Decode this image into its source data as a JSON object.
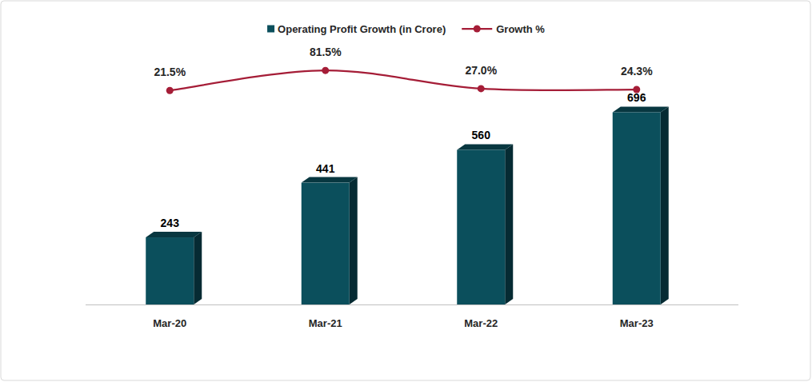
{
  "chart_data": {
    "type": "bar",
    "categories": [
      "Mar-20",
      "Mar-21",
      "Mar-22",
      "Mar-23"
    ],
    "series": [
      {
        "name": "Operating Profit Growth (in Crore)",
        "type": "bar",
        "color": "#0b4f5c",
        "values": [
          243,
          441,
          560,
          696
        ]
      },
      {
        "name": "Growth %",
        "type": "line",
        "axis": "y2",
        "color": "#a51d37",
        "marker": "circle",
        "values": [
          21.5,
          81.5,
          27.0,
          24.3
        ],
        "value_labels": [
          "21.5%",
          "81.5%",
          "27.0%",
          "24.3%"
        ]
      }
    ],
    "ylim": [
      0,
      900
    ],
    "y2lim": [
      -620,
      125
    ],
    "data_labels": true,
    "tick_labels": "x",
    "grid": false,
    "legend": "top"
  }
}
